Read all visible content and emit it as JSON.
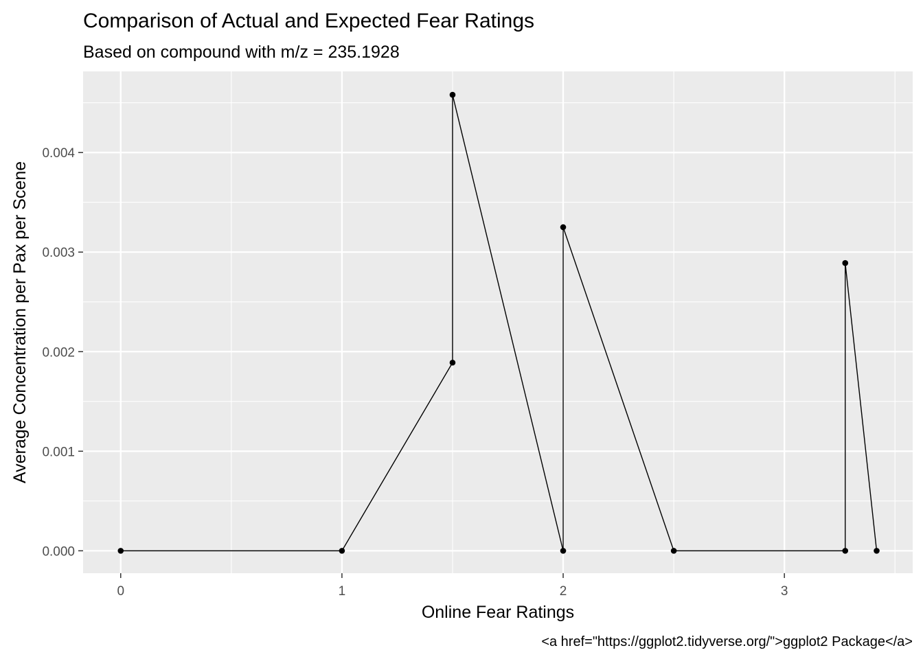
{
  "chart_data": {
    "type": "line",
    "title": "Comparison of Actual and Expected Fear Ratings",
    "subtitle": "Based on compound with m/z = 235.1928",
    "xlabel": "Online Fear Ratings",
    "ylabel": "Average Concentration per Pax per Scene",
    "caption": "<a href=\"https://ggplot2.tidyverse.org/\">ggplot2 Package</a>",
    "xlim": [
      -0.17,
      3.58
    ],
    "ylim": [
      -0.000225,
      0.004815
    ],
    "x_ticks": [
      0,
      1,
      2,
      3
    ],
    "x_tick_labels": [
      "0",
      "1",
      "2",
      "3"
    ],
    "y_ticks": [
      0,
      0.001,
      0.002,
      0.003,
      0.004
    ],
    "y_tick_labels": [
      "0.000",
      "0.001",
      "0.002",
      "0.003",
      "0.004"
    ],
    "grid": true,
    "legend": "none",
    "colors": {
      "panel_background": "#ebebeb",
      "grid": "#ffffff",
      "line": "#000000",
      "point": "#000000"
    },
    "series": [
      {
        "x": [
          0,
          1,
          1.5,
          1.5,
          2,
          2,
          2.5,
          3.275,
          3.275,
          3.417
        ],
        "y": [
          0,
          0,
          0.00189,
          0.00458,
          0,
          0.00325,
          0,
          0,
          0.00289,
          0
        ]
      }
    ]
  }
}
